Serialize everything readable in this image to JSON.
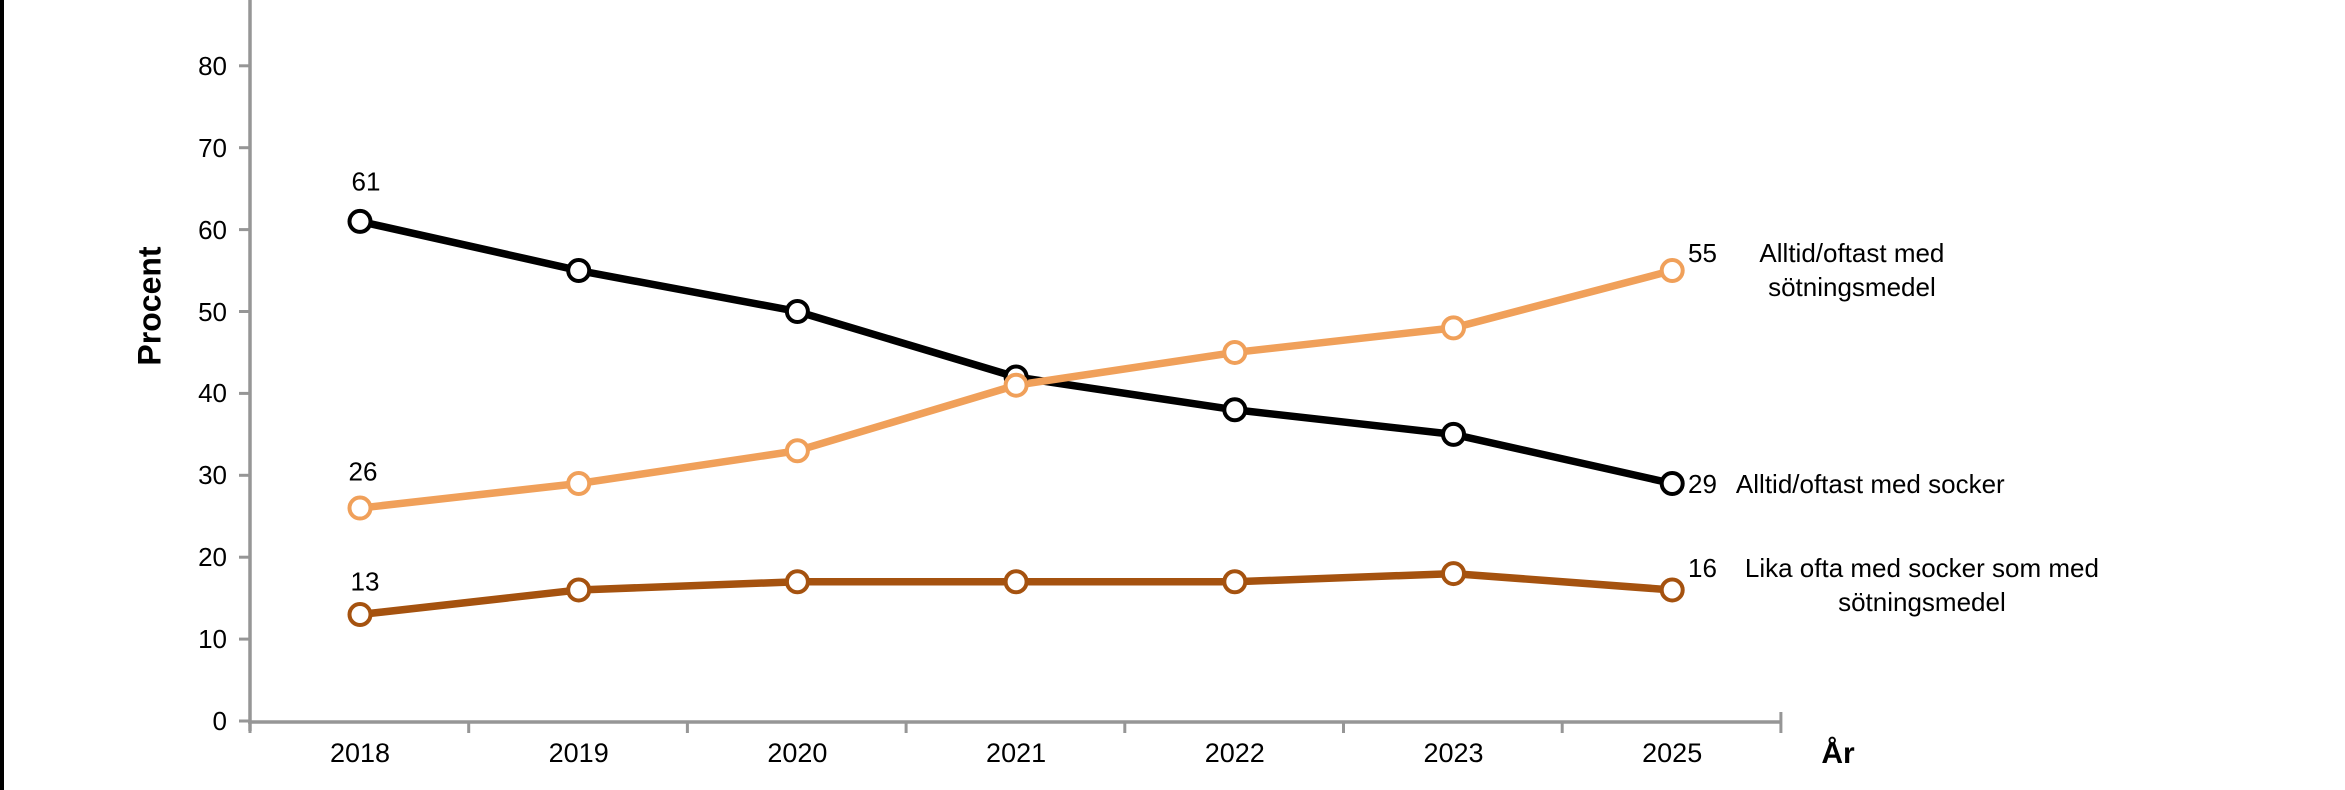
{
  "figure": {
    "background": "#ffffff",
    "left_border_color": "#000000",
    "axis_color": "#969696",
    "text_color": "#000000"
  },
  "chart_data": {
    "type": "line",
    "title": "",
    "x_axis": {
      "label": "År",
      "categories": [
        "2018",
        "2019",
        "2020",
        "2021",
        "2022",
        "2023",
        "2025"
      ]
    },
    "y_axis": {
      "label": "Procent",
      "ticks": [
        0,
        10,
        20,
        30,
        40,
        50,
        60,
        70,
        80
      ],
      "range": [
        0,
        80
      ],
      "unit": "percent"
    },
    "grid": false,
    "legend_position": "right-of-last-point",
    "marker_style": "open-circle",
    "series": [
      {
        "name": "Alltid/oftast med socker",
        "color": "#000000",
        "values": [
          61,
          55,
          50,
          42,
          38,
          35,
          29
        ]
      },
      {
        "name": "Alltid/oftast med sötningsmedel",
        "color": "#F0A05A",
        "values": [
          26,
          29,
          33,
          41,
          45,
          48,
          55
        ]
      },
      {
        "name": "Lika ofta med socker som med sötningsmedel",
        "color": "#A5520F",
        "values": [
          13,
          16,
          17,
          17,
          17,
          18,
          16
        ]
      }
    ]
  }
}
